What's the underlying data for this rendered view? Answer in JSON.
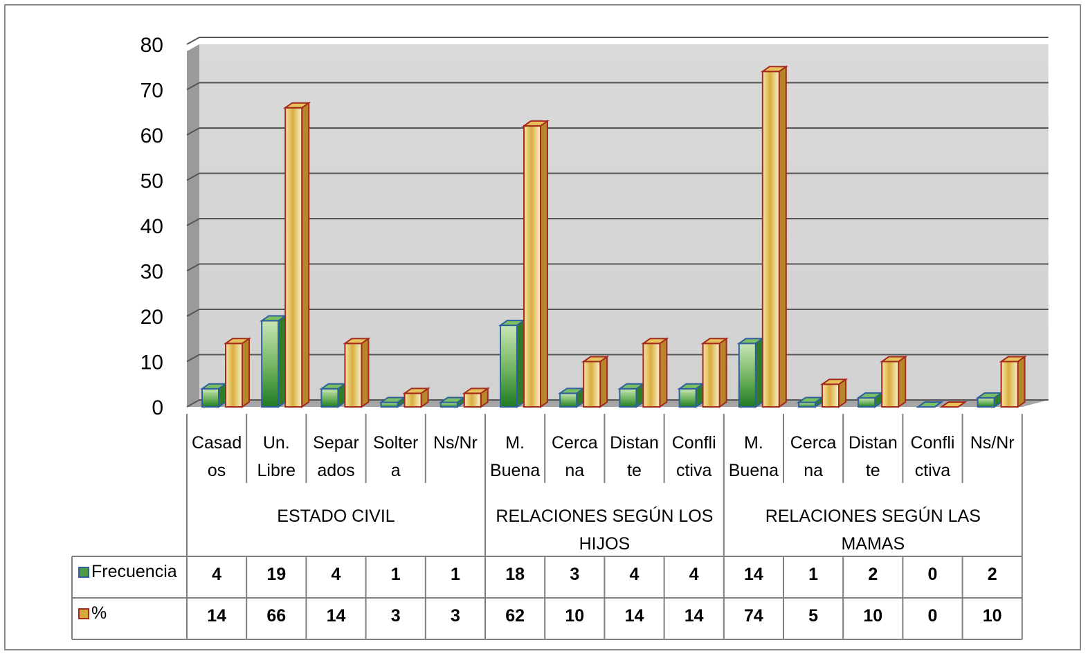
{
  "chart_data": {
    "type": "bar",
    "title": "",
    "xlabel": "",
    "ylabel": "",
    "ylim": [
      0,
      80
    ],
    "yticks": [
      0,
      10,
      20,
      30,
      40,
      50,
      60,
      70,
      80
    ],
    "grid": true,
    "legend_position": "left of data table",
    "categories": [
      [
        "Casad",
        "os"
      ],
      [
        "Un.",
        "Libre"
      ],
      [
        "Separ",
        "ados"
      ],
      [
        "Solter",
        "a"
      ],
      [
        "Ns/Nr"
      ],
      [
        "M.",
        "Buena"
      ],
      [
        "Cerca",
        "na"
      ],
      [
        "Distan",
        "te"
      ],
      [
        "Confli",
        "ctiva"
      ],
      [
        "M.",
        "Buena"
      ],
      [
        "Cerca",
        "na"
      ],
      [
        "Distan",
        "te"
      ],
      [
        "Confli",
        "ctiva"
      ],
      [
        "Ns/Nr"
      ]
    ],
    "groups": [
      {
        "label": [
          "ESTADO CIVIL"
        ],
        "count": 5
      },
      {
        "label": [
          "RELACIONES SEGÚN LOS",
          "HIJOS"
        ],
        "count": 4
      },
      {
        "label": [
          "RELACIONES SEGÚN LAS",
          "MAMAS"
        ],
        "count": 5
      }
    ],
    "series": [
      {
        "name": "Frecuencia",
        "color": "#4f9a45",
        "border": "#2e5f9e",
        "values": [
          4,
          19,
          4,
          1,
          1,
          18,
          3,
          4,
          4,
          14,
          1,
          2,
          0,
          2
        ]
      },
      {
        "name": "%",
        "color": "#d4a93a",
        "border": "#a52a1e",
        "values": [
          14,
          66,
          14,
          3,
          3,
          62,
          10,
          14,
          14,
          74,
          5,
          10,
          0,
          10
        ]
      }
    ]
  }
}
